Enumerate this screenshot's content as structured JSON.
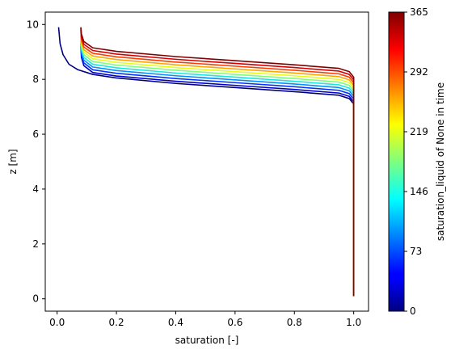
{
  "chart_data": {
    "type": "line",
    "xlabel": "saturation [-]",
    "ylabel": "z [m]",
    "xlim": [
      -0.04,
      1.05
    ],
    "ylim": [
      -0.45,
      10.45
    ],
    "x_ticks": [
      "0.0",
      "0.2",
      "0.4",
      "0.6",
      "0.8",
      "1.0"
    ],
    "y_ticks": [
      "0",
      "2",
      "4",
      "6",
      "8",
      "10"
    ],
    "colorbar": {
      "label": "saturation_liquid of None in time",
      "range": [
        0,
        365
      ],
      "ticks": [
        "0",
        "73",
        "146",
        "219",
        "292",
        "365"
      ],
      "colormap": "jet"
    },
    "series": [
      {
        "time": 0,
        "color": "#00007f",
        "values": [
          [
            0.005,
            9.9
          ],
          [
            0.01,
            9.3
          ],
          [
            0.02,
            8.9
          ],
          [
            0.04,
            8.55
          ],
          [
            0.07,
            8.35
          ],
          [
            0.12,
            8.18
          ],
          [
            0.2,
            8.05
          ],
          [
            0.4,
            7.85
          ],
          [
            0.6,
            7.7
          ],
          [
            0.8,
            7.55
          ],
          [
            0.95,
            7.42
          ],
          [
            0.985,
            7.3
          ],
          [
            1.0,
            7.1
          ],
          [
            1.0,
            0.1
          ]
        ]
      },
      {
        "time": 36,
        "color": "#0000d0",
        "values": [
          [
            0.08,
            9.2
          ],
          [
            0.082,
            8.8
          ],
          [
            0.09,
            8.5
          ],
          [
            0.12,
            8.25
          ],
          [
            0.2,
            8.12
          ],
          [
            0.4,
            7.93
          ],
          [
            0.6,
            7.78
          ],
          [
            0.8,
            7.63
          ],
          [
            0.95,
            7.5
          ],
          [
            0.985,
            7.38
          ],
          [
            1.0,
            7.18
          ],
          [
            1.0,
            0.1
          ]
        ]
      },
      {
        "time": 73,
        "color": "#0033ff",
        "values": [
          [
            0.08,
            9.3
          ],
          [
            0.082,
            8.9
          ],
          [
            0.09,
            8.6
          ],
          [
            0.12,
            8.35
          ],
          [
            0.2,
            8.22
          ],
          [
            0.4,
            8.03
          ],
          [
            0.6,
            7.88
          ],
          [
            0.8,
            7.73
          ],
          [
            0.95,
            7.6
          ],
          [
            0.985,
            7.48
          ],
          [
            1.0,
            7.28
          ],
          [
            1.0,
            0.1
          ]
        ]
      },
      {
        "time": 110,
        "color": "#0090ff",
        "values": [
          [
            0.08,
            9.4
          ],
          [
            0.082,
            9.0
          ],
          [
            0.09,
            8.7
          ],
          [
            0.12,
            8.45
          ],
          [
            0.2,
            8.32
          ],
          [
            0.4,
            8.13
          ],
          [
            0.6,
            7.98
          ],
          [
            0.8,
            7.83
          ],
          [
            0.95,
            7.7
          ],
          [
            0.985,
            7.58
          ],
          [
            1.0,
            7.38
          ],
          [
            1.0,
            0.1
          ]
        ]
      },
      {
        "time": 146,
        "color": "#17e8e0",
        "values": [
          [
            0.08,
            9.5
          ],
          [
            0.082,
            9.1
          ],
          [
            0.09,
            8.8
          ],
          [
            0.12,
            8.55
          ],
          [
            0.2,
            8.42
          ],
          [
            0.4,
            8.23
          ],
          [
            0.6,
            8.08
          ],
          [
            0.8,
            7.93
          ],
          [
            0.95,
            7.8
          ],
          [
            0.985,
            7.68
          ],
          [
            1.0,
            7.48
          ],
          [
            1.0,
            0.1
          ]
        ]
      },
      {
        "time": 183,
        "color": "#7dff7a",
        "values": [
          [
            0.08,
            9.6
          ],
          [
            0.082,
            9.2
          ],
          [
            0.09,
            8.9
          ],
          [
            0.12,
            8.65
          ],
          [
            0.2,
            8.52
          ],
          [
            0.4,
            8.33
          ],
          [
            0.6,
            8.18
          ],
          [
            0.8,
            8.03
          ],
          [
            0.95,
            7.9
          ],
          [
            0.985,
            7.78
          ],
          [
            1.0,
            7.58
          ],
          [
            1.0,
            0.1
          ]
        ]
      },
      {
        "time": 219,
        "color": "#e4ff13",
        "values": [
          [
            0.08,
            9.7
          ],
          [
            0.082,
            9.3
          ],
          [
            0.09,
            9.0
          ],
          [
            0.12,
            8.75
          ],
          [
            0.2,
            8.62
          ],
          [
            0.4,
            8.43
          ],
          [
            0.6,
            8.28
          ],
          [
            0.8,
            8.13
          ],
          [
            0.95,
            8.0
          ],
          [
            0.985,
            7.88
          ],
          [
            1.0,
            7.68
          ],
          [
            1.0,
            0.1
          ]
        ]
      },
      {
        "time": 256,
        "color": "#ffa700",
        "values": [
          [
            0.08,
            9.75
          ],
          [
            0.082,
            9.35
          ],
          [
            0.09,
            9.08
          ],
          [
            0.12,
            8.85
          ],
          [
            0.2,
            8.72
          ],
          [
            0.4,
            8.53
          ],
          [
            0.6,
            8.38
          ],
          [
            0.8,
            8.23
          ],
          [
            0.95,
            8.1
          ],
          [
            0.985,
            7.98
          ],
          [
            1.0,
            7.78
          ],
          [
            1.0,
            0.1
          ]
        ]
      },
      {
        "time": 292,
        "color": "#ff3d00",
        "values": [
          [
            0.08,
            9.8
          ],
          [
            0.082,
            9.45
          ],
          [
            0.09,
            9.18
          ],
          [
            0.12,
            8.95
          ],
          [
            0.2,
            8.82
          ],
          [
            0.4,
            8.63
          ],
          [
            0.6,
            8.48
          ],
          [
            0.8,
            8.33
          ],
          [
            0.95,
            8.2
          ],
          [
            0.985,
            8.08
          ],
          [
            1.0,
            7.88
          ],
          [
            1.0,
            0.1
          ]
        ]
      },
      {
        "time": 329,
        "color": "#d40000",
        "values": [
          [
            0.08,
            9.85
          ],
          [
            0.082,
            9.55
          ],
          [
            0.09,
            9.28
          ],
          [
            0.12,
            9.05
          ],
          [
            0.2,
            8.92
          ],
          [
            0.4,
            8.73
          ],
          [
            0.6,
            8.58
          ],
          [
            0.8,
            8.43
          ],
          [
            0.95,
            8.3
          ],
          [
            0.985,
            8.18
          ],
          [
            1.0,
            7.98
          ],
          [
            1.0,
            0.1
          ]
        ]
      },
      {
        "time": 365,
        "color": "#7f0000",
        "values": [
          [
            0.08,
            9.9
          ],
          [
            0.082,
            9.65
          ],
          [
            0.09,
            9.38
          ],
          [
            0.12,
            9.15
          ],
          [
            0.2,
            9.02
          ],
          [
            0.4,
            8.83
          ],
          [
            0.6,
            8.68
          ],
          [
            0.8,
            8.53
          ],
          [
            0.95,
            8.4
          ],
          [
            0.985,
            8.28
          ],
          [
            1.0,
            8.08
          ],
          [
            1.0,
            0.1
          ]
        ]
      }
    ]
  }
}
